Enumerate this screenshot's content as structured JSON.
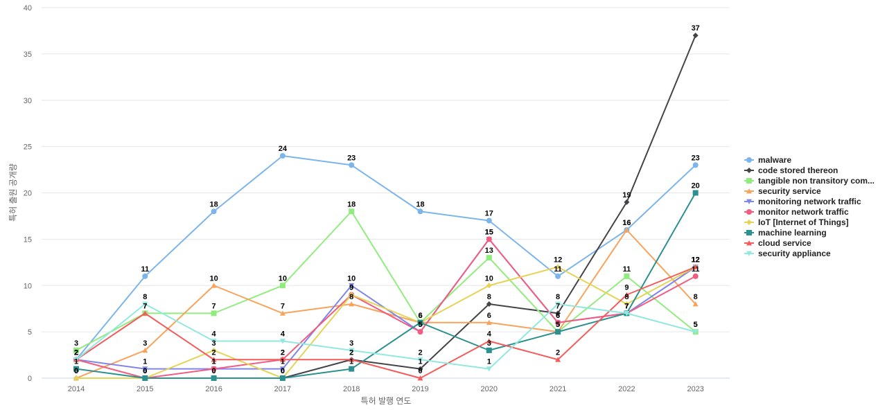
{
  "chart_data": {
    "type": "line",
    "title": "",
    "xlabel": "특허 발행 연도",
    "ylabel": "특허 출원 공개량",
    "ylim": [
      0,
      40
    ],
    "y_ticks": [
      "0",
      "5",
      "10",
      "15",
      "20",
      "25",
      "30",
      "35",
      "40"
    ],
    "x": [
      "2014",
      "2015",
      "2016",
      "2017",
      "2018",
      "2019",
      "2020",
      "2021",
      "2022",
      "2023"
    ],
    "grid": true,
    "legend_position": "right",
    "series": [
      {
        "name": "malware",
        "color": "#7cb5ec",
        "marker": "circle",
        "values": [
          2,
          11,
          18,
          24,
          23,
          18,
          17,
          11,
          16,
          23
        ]
      },
      {
        "name": "code stored thereon",
        "color": "#434348",
        "marker": "diamond",
        "values": [
          0,
          0,
          0,
          0,
          2,
          1,
          8,
          7,
          19,
          37
        ]
      },
      {
        "name": "tangible non transitory com...",
        "color": "#90ed7d",
        "marker": "square",
        "values": [
          3,
          7,
          7,
          10,
          18,
          6,
          13,
          5,
          11,
          5
        ]
      },
      {
        "name": "security service",
        "color": "#f7a35c",
        "marker": "triangle",
        "values": [
          0,
          3,
          10,
          7,
          8,
          6,
          6,
          5,
          16,
          8
        ]
      },
      {
        "name": "monitoring network traffic",
        "color": "#8085e9",
        "marker": "triangle-down",
        "values": [
          2,
          1,
          1,
          1,
          10,
          5,
          15,
          6,
          7,
          12
        ]
      },
      {
        "name": "monitor network traffic",
        "color": "#f15c80",
        "marker": "circle",
        "values": [
          2,
          0,
          1,
          2,
          9,
          5,
          15,
          6,
          7,
          11
        ]
      },
      {
        "name": "IoT [Internet of Things]",
        "color": "#e4d354",
        "marker": "diamond",
        "values": [
          0,
          0,
          3,
          0,
          9,
          6,
          10,
          12,
          8,
          12
        ]
      },
      {
        "name": "machine learning",
        "color": "#2b908f",
        "marker": "square",
        "values": [
          1,
          0,
          0,
          0,
          1,
          6,
          3,
          5,
          7,
          20
        ]
      },
      {
        "name": "cloud service",
        "color": "#f45b5b",
        "marker": "triangle",
        "values": [
          2,
          7,
          2,
          2,
          2,
          0,
          4,
          2,
          9,
          12
        ]
      },
      {
        "name": "security appliance",
        "color": "#91e8e1",
        "marker": "triangle-down",
        "values": [
          2,
          8,
          4,
          4,
          3,
          2,
          1,
          8,
          7,
          5
        ]
      }
    ]
  }
}
